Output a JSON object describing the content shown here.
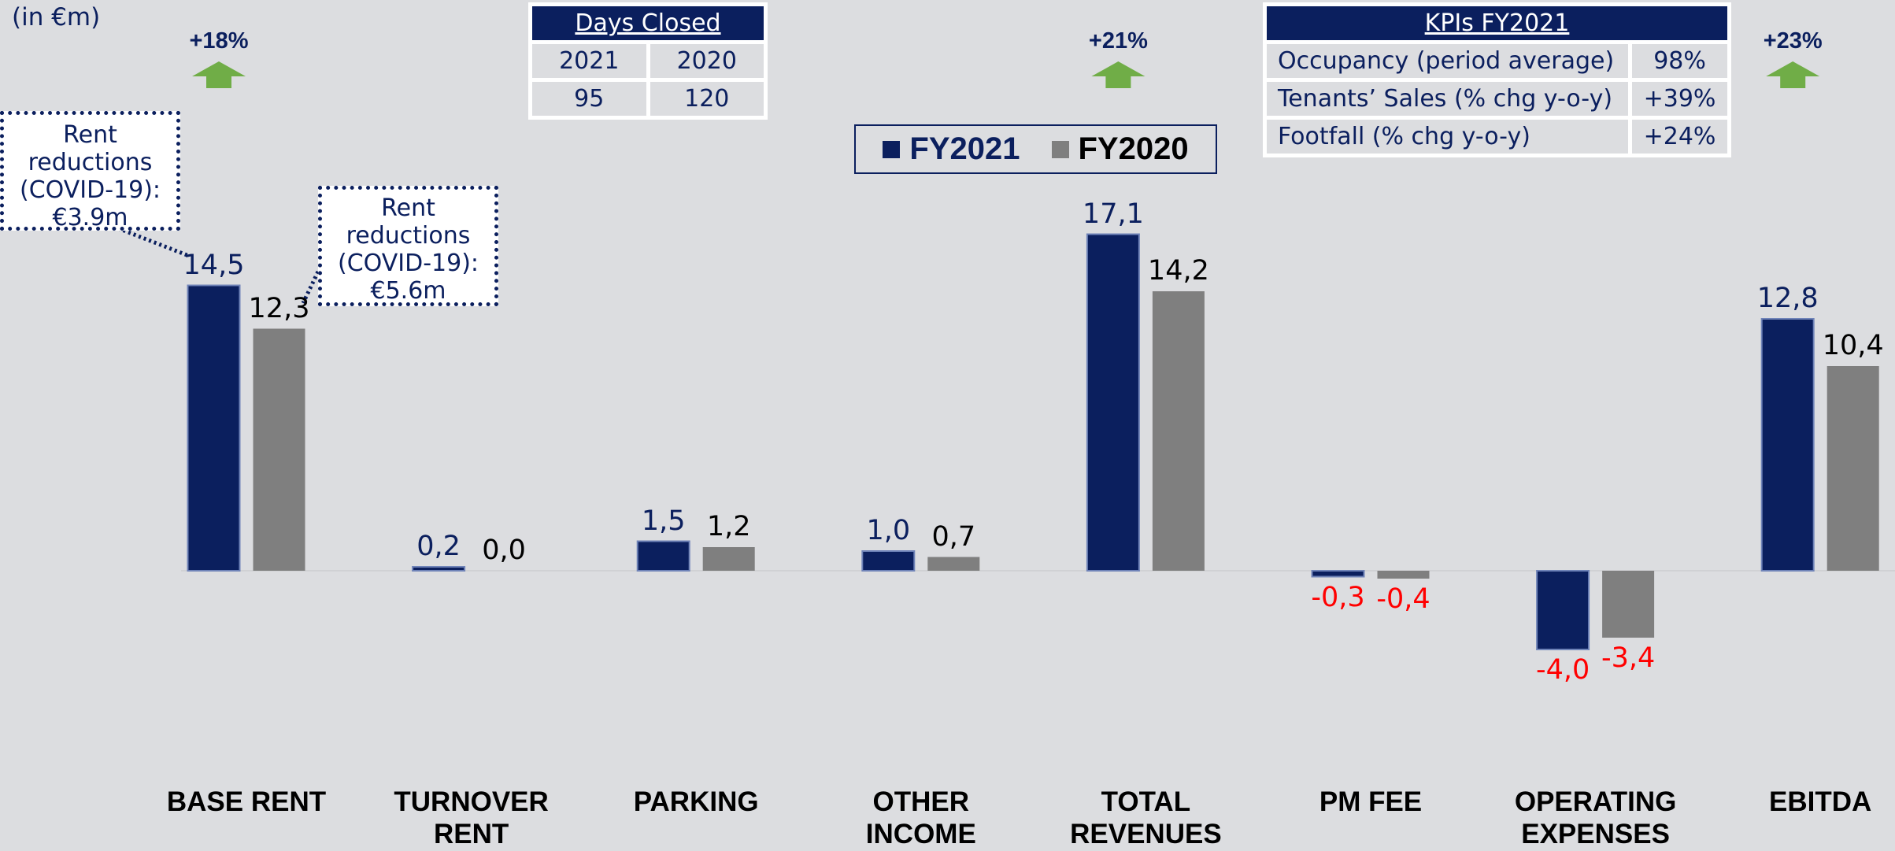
{
  "chart_data": {
    "type": "bar",
    "unit_label": "(in €m)",
    "categories": [
      "BASE RENT",
      "TURNOVER RENT",
      "PARKING",
      "OTHER INCOME",
      "TOTAL REVENUES",
      "PM FEE",
      "OPERATING EXPENSES",
      "EBITDA"
    ],
    "series": [
      {
        "name": "FY2021",
        "color": "#0b1f5e",
        "values": [
          14.5,
          0.2,
          1.5,
          1.0,
          17.1,
          -0.3,
          -4.0,
          12.8
        ],
        "value_labels": [
          "14,5",
          "0,2",
          "1,5",
          "1,0",
          "17,1",
          "-0,3",
          "-4,0",
          "12,8"
        ]
      },
      {
        "name": "FY2020",
        "color": "#7f7f7f",
        "values": [
          12.3,
          0.0,
          1.2,
          0.7,
          14.2,
          -0.4,
          -3.4,
          10.4
        ],
        "value_labels": [
          "12,3",
          "0,0",
          "1,2",
          "0,7",
          "14,2",
          "-0,4",
          "-3,4",
          "10,4"
        ]
      }
    ],
    "negative_label_color": "#ff0000",
    "annotations": [
      "+18%",
      "+21%",
      "+23%"
    ],
    "callouts": [
      "Rent reductions (COVID-19): €3.9m",
      "Rent reductions (COVID-19): €5.6m"
    ]
  },
  "days_closed": {
    "title": "Days Closed",
    "header": [
      "2021",
      "2020"
    ],
    "rows": [
      [
        "95",
        "120"
      ]
    ]
  },
  "kpis": {
    "title": "KPIs FY2021",
    "rows": [
      [
        "Occupancy (period average)",
        "98%"
      ],
      [
        "Tenants’ Sales (% chg y-o-y)",
        "+39%"
      ],
      [
        "Footfall (% chg y-o-y)",
        "+24%"
      ]
    ]
  }
}
